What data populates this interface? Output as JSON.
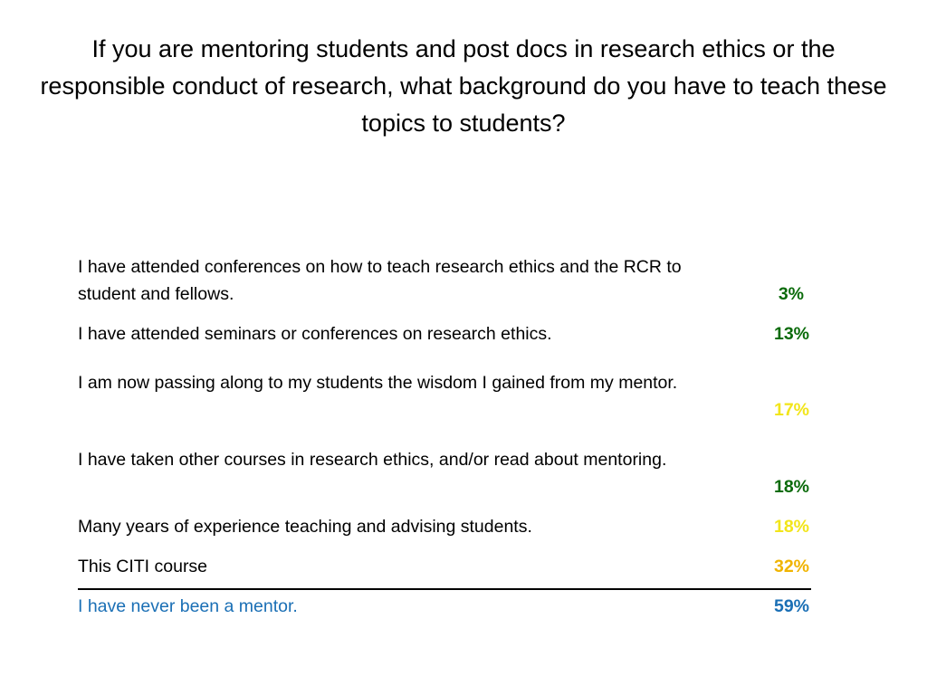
{
  "title": "If you are mentoring students and post docs in research ethics or the responsible conduct of research, what background do you have to teach these topics to students?",
  "rows": [
    {
      "label": "I have attended conferences on how to teach research ethics and the RCR to student and fellows.",
      "percent": "3%",
      "percent_color": "#0b6b0b"
    },
    {
      "label": "I have attended seminars or conferences on research ethics.",
      "percent": "13%",
      "percent_color": "#0b6b0b"
    },
    {
      "label": "I am now passing along to my students the wisdom I gained from my mentor.",
      "percent": "17%",
      "percent_color": "#f2e51a"
    },
    {
      "label": "I have taken other courses in research ethics, and/or read about mentoring.",
      "percent": "18%",
      "percent_color": "#0b6b0b"
    },
    {
      "label": "Many years of experience teaching and advising students.",
      "percent": "18%",
      "percent_color": "#f2e51a"
    },
    {
      "label": "This CITI course",
      "percent": "32%",
      "percent_color": "#f0b400"
    },
    {
      "label": "I have never been a mentor.",
      "percent": "59%",
      "percent_color": "#1a6fb5",
      "label_color": "#1a6fb5"
    }
  ]
}
